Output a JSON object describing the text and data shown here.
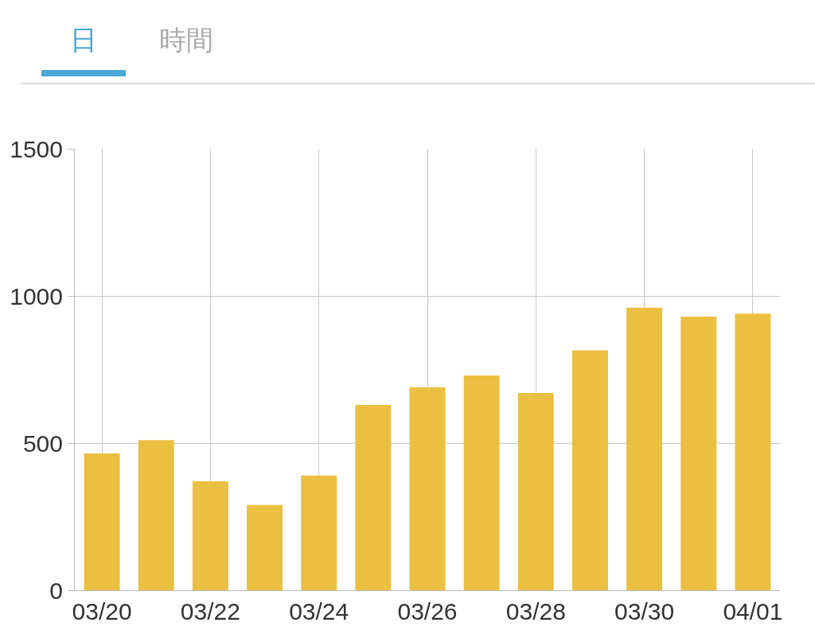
{
  "chart_data": {
    "type": "bar",
    "annotations": [
      "日",
      "時間"
    ],
    "categories": [
      "03/20",
      null,
      "03/22",
      null,
      "03/24",
      null,
      "03/26",
      null,
      "03/28",
      null,
      "03/30",
      null,
      "04/01"
    ],
    "values": [
      465,
      510,
      370,
      290,
      390,
      630,
      690,
      730,
      670,
      815,
      960,
      930,
      940
    ],
    "color": "#ebc042",
    "ylim": [
      0,
      1500
    ],
    "yticks": [
      0,
      500,
      1000,
      1500
    ],
    "grid": true
  }
}
